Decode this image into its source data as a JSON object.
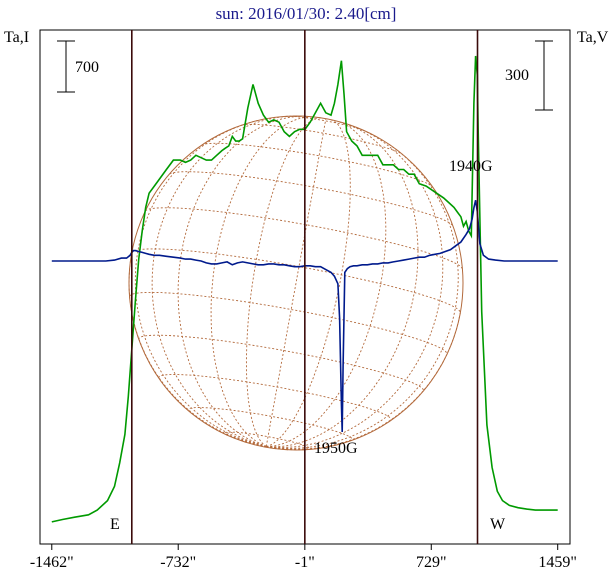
{
  "chart_data": {
    "type": "line",
    "title": "sun: 2016/01/30: 2.40[cm]",
    "y_left_label": "Ta,I",
    "y_right_label": "Ta,V",
    "scale_bar_left": "700",
    "scale_bar_right": "300",
    "x_ticks": [
      "-1462\"",
      "-732\"",
      "-1\"",
      "729\"",
      "1459\""
    ],
    "x_tick_values": [
      -1462,
      -732,
      -1,
      729,
      1459
    ],
    "xlim": [
      -1530,
      1530
    ],
    "limb_labels": {
      "east": "E",
      "west": "W"
    },
    "limb_positions": [
      -1000,
      996
    ],
    "annotations": [
      {
        "text": "1940G",
        "x": 985
      },
      {
        "text": "1950G",
        "x": 215
      }
    ],
    "series": [
      {
        "name": "I",
        "color": "#009a00",
        "x": [
          -1462,
          -1400,
          -1330,
          -1250,
          -1200,
          -1140,
          -1100,
          -1070,
          -1040,
          -1020,
          -1000,
          -980,
          -960,
          -940,
          -920,
          -900,
          -870,
          -840,
          -800,
          -760,
          -720,
          -690,
          -660,
          -630,
          -600,
          -570,
          -540,
          -510,
          -480,
          -460,
          -440,
          -420,
          -400,
          -380,
          -360,
          -330,
          -300,
          -270,
          -240,
          -210,
          -180,
          -150,
          -120,
          -90,
          -60,
          -30,
          0,
          30,
          60,
          90,
          120,
          150,
          170,
          190,
          210,
          225,
          240,
          270,
          300,
          330,
          360,
          390,
          420,
          450,
          480,
          510,
          540,
          570,
          600,
          630,
          660,
          700,
          760,
          800,
          830,
          860,
          880,
          900,
          915,
          930,
          945,
          960,
          975,
          985,
          995,
          1000,
          1020,
          1050,
          1080,
          1110,
          1140,
          1180,
          1230,
          1280,
          1330,
          1380,
          1420,
          1459
        ],
        "values": [
          1.5,
          2,
          2.5,
          3,
          4,
          6,
          9,
          14,
          20,
          28,
          38,
          48,
          57,
          63,
          68,
          71,
          72.5,
          74,
          76,
          78,
          78,
          77.5,
          78,
          79,
          78.5,
          78,
          78,
          79,
          80,
          80.5,
          81,
          83,
          82,
          82,
          82.5,
          89,
          94,
          90,
          87.5,
          86,
          86.5,
          86,
          84,
          83,
          84,
          84.5,
          84.5,
          86,
          88,
          90,
          88,
          87.5,
          90,
          94,
          99,
          92,
          84,
          82,
          81,
          79,
          79,
          79,
          79,
          77,
          77,
          77,
          76,
          76,
          75,
          75,
          73,
          72.5,
          71,
          70,
          69,
          68,
          67,
          66,
          64,
          65,
          63,
          62,
          90,
          100,
          96,
          84,
          46,
          22,
          13,
          8,
          6,
          5,
          4.5,
          4.2,
          4,
          4,
          4,
          4
        ]
      },
      {
        "name": "V",
        "color": "#001a8c",
        "x": [
          -1462,
          -1300,
          -1150,
          -1100,
          -1060,
          -1030,
          -1010,
          -1000,
          -990,
          -980,
          -960,
          -940,
          -920,
          -900,
          -870,
          -840,
          -800,
          -760,
          -720,
          -690,
          -660,
          -630,
          -600,
          -570,
          -540,
          -510,
          -480,
          -450,
          -420,
          -390,
          -360,
          -330,
          -300,
          -270,
          -240,
          -210,
          -180,
          -150,
          -120,
          -90,
          -60,
          -30,
          0,
          30,
          60,
          90,
          120,
          150,
          170,
          190,
          200,
          210,
          215,
          220,
          230,
          245,
          260,
          280,
          300,
          330,
          360,
          390,
          420,
          450,
          480,
          510,
          540,
          570,
          600,
          630,
          660,
          690,
          720,
          750,
          780,
          810,
          840,
          870,
          900,
          930,
          950,
          965,
          975,
          985,
          995,
          1010,
          1030,
          1060,
          1100,
          1150,
          1200,
          1300,
          1459
        ],
        "values": [
          0,
          0,
          0,
          0.5,
          1.5,
          1.5,
          3,
          4.5,
          5.5,
          5.5,
          5,
          4.5,
          4,
          3.5,
          3,
          3,
          2.5,
          2,
          1.5,
          1,
          1,
          0.5,
          0,
          -1,
          -1.5,
          -1.5,
          -1,
          -0.5,
          -2,
          -1,
          -0.5,
          -1,
          -1.5,
          -2,
          -2,
          -1.5,
          -1.5,
          -2,
          -2,
          -2.5,
          -3,
          -3,
          -2.5,
          -2.5,
          -3,
          -3,
          -4.5,
          -6,
          -8,
          -12,
          -30,
          -75,
          -90,
          -55,
          -6,
          -4,
          -3,
          -2.5,
          -2.5,
          -2,
          -2,
          -1.5,
          -1.5,
          -1,
          -1,
          -0.5,
          0,
          0.5,
          1,
          1.5,
          2,
          2,
          3,
          3.5,
          4,
          5,
          6,
          8,
          10,
          14,
          17,
          22,
          28,
          32,
          26,
          9,
          3,
          1,
          0.5,
          0,
          0,
          0,
          0
        ]
      }
    ]
  }
}
